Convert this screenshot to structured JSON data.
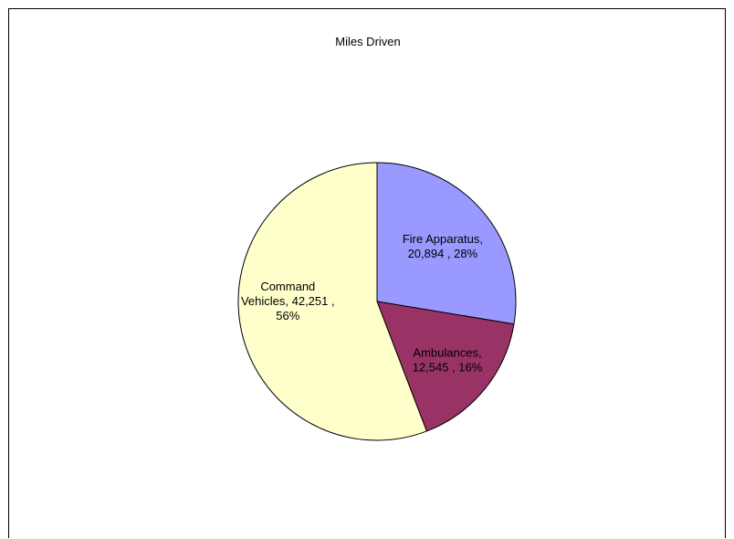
{
  "chart_data": {
    "type": "pie",
    "title": "Miles Driven",
    "slices": [
      {
        "label": "Fire Apparatus",
        "value": 20894,
        "value_text": "20,894",
        "percent": "28%",
        "color": "#9999ff",
        "label_lines": [
          "Fire Apparatus,",
          "20,894 , 28%"
        ]
      },
      {
        "label": "Ambulances",
        "value": 12545,
        "value_text": "12,545",
        "percent": "16%",
        "color": "#993366",
        "label_lines": [
          "Ambulances,",
          "12,545 , 16%"
        ]
      },
      {
        "label": "Command Vehicles",
        "value": 42251,
        "value_text": "42,251",
        "percent": "56%",
        "color": "#ffffcc",
        "label_lines": [
          "Command",
          "Vehicles, 42,251 ,",
          "56%"
        ]
      }
    ],
    "legend": "none",
    "start_angle_deg": 0,
    "direction": "clockwise"
  }
}
